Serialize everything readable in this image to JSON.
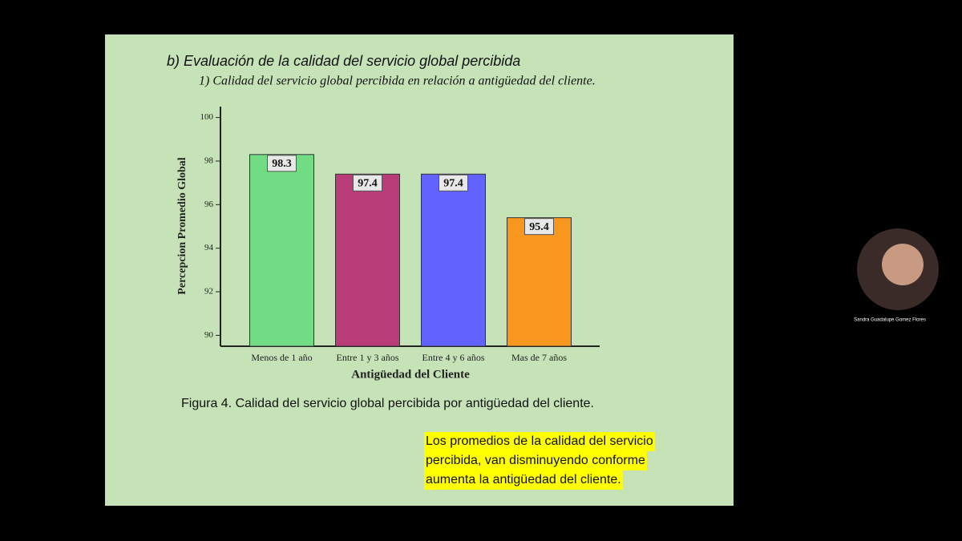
{
  "slide": {
    "heading": "b) Evaluación de la calidad del servicio global percibida",
    "subheading": "1) Calidad del servicio global percibida en relación a antigüedad del cliente.",
    "caption": "Figura 4. Calidad del servicio global percibida por antigüedad del cliente.",
    "note": [
      "Los promedios de la calidad del servicio",
      "percibida, van disminuyendo conforme",
      "aumenta la antigüedad del cliente."
    ]
  },
  "participant": {
    "name": "Sandra Guadalupe Gomez Flores"
  },
  "chart_data": {
    "type": "bar",
    "x_label": "Antigüedad del Cliente",
    "y_label": "Percepcion Promedio Global",
    "categories": [
      "Menos de 1 año",
      "Entre 1 y 3 años",
      "Entre 4 y 6 años",
      "Mas de 7 años"
    ],
    "values": [
      98.3,
      97.4,
      97.4,
      95.4
    ],
    "colors": [
      "#72dc84",
      "#b83c78",
      "#6262ff",
      "#f7971e"
    ],
    "ylim": [
      89.5,
      100.5
    ],
    "yticks": [
      90,
      92,
      94,
      96,
      98,
      100
    ],
    "grid": false
  }
}
